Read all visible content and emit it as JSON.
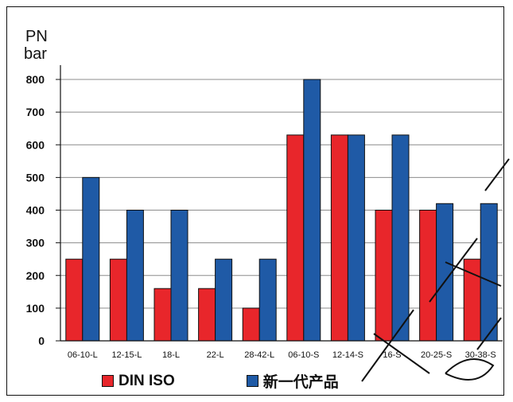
{
  "chart_data": {
    "type": "bar",
    "ylabel_lines": [
      "PN",
      "bar"
    ],
    "categories": [
      "06-10-L",
      "12-15-L",
      "18-L",
      "22-L",
      "28-42-L",
      "06-10-S",
      "12-14-S",
      "16-S",
      "20-25-S",
      "30-38-S"
    ],
    "series": [
      {
        "name": "DIN ISO",
        "color": "#e8262b",
        "values": [
          250,
          250,
          160,
          160,
          100,
          630,
          630,
          400,
          400,
          250
        ]
      },
      {
        "name": "新一代产品",
        "color": "#1f5aa6",
        "values": [
          500,
          400,
          400,
          250,
          250,
          800,
          630,
          630,
          420,
          420
        ]
      }
    ],
    "yticks": [
      0,
      100,
      200,
      300,
      400,
      500,
      600,
      700,
      800
    ],
    "ylim": [
      0,
      800
    ],
    "grid": true,
    "legend_position": "bottom"
  }
}
